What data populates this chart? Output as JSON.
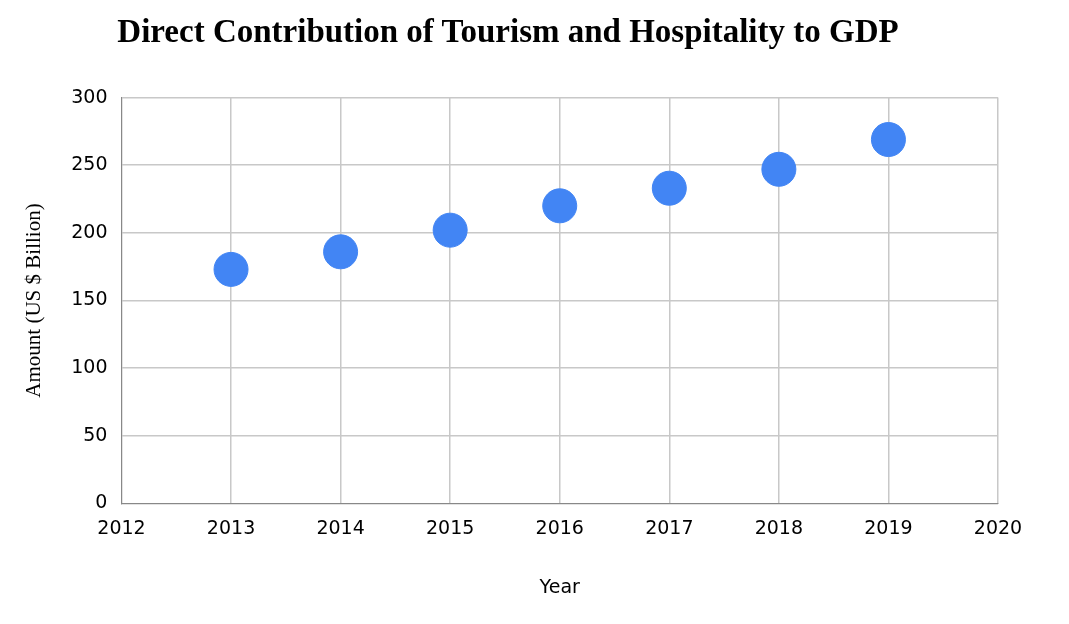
{
  "chart_data": {
    "type": "scatter",
    "title": "Direct Contribution of Tourism and Hospitality to GDP",
    "xlabel": "Year",
    "ylabel": "Amount (US $ Billion)",
    "x": [
      2013,
      2014,
      2015,
      2016,
      2017,
      2018,
      2019
    ],
    "values": [
      173,
      186,
      202,
      220,
      233,
      247,
      269
    ],
    "color": "#4285f4",
    "marker": "circle",
    "xlim": [
      2012,
      2020
    ],
    "xticks": [
      2012,
      2013,
      2014,
      2015,
      2016,
      2017,
      2018,
      2019,
      2020
    ],
    "ylim": [
      0,
      300
    ],
    "yticks": [
      0,
      50,
      100,
      150,
      200,
      250,
      300
    ],
    "grid": true
  }
}
